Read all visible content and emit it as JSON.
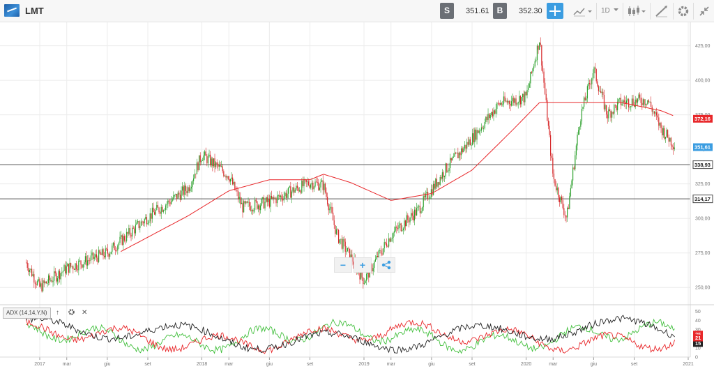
{
  "header": {
    "symbol": "LMT",
    "sell_label": "S",
    "sell_price": "351.61",
    "buy_label": "B",
    "buy_price": "352.30",
    "timeframe": "1D",
    "icons": [
      "crosshair-icon",
      "chart-type-icon",
      "candlestick-icon",
      "draw-tool-icon",
      "gear-icon",
      "collapse-icon"
    ]
  },
  "chart_data": {
    "type": "line",
    "title": "",
    "yticks": [
      "250,00",
      "275,00",
      "300,00",
      "325,00",
      "350,00",
      "375,00",
      "400,00",
      "425,00"
    ],
    "xticks": [
      "2017",
      "mar",
      "giu",
      "set",
      "2018",
      "mar",
      "giu",
      "set",
      "2019",
      "mar",
      "giu",
      "set",
      "2020",
      "mar",
      "giu",
      "set",
      "2021"
    ],
    "ylim": [
      240,
      442
    ],
    "grid": true,
    "price_series": {
      "name": "LMT",
      "x": [
        "2016-12",
        "2017-01",
        "2017-03",
        "2017-06",
        "2017-09",
        "2017-12",
        "2018-01",
        "2018-03",
        "2018-04",
        "2018-06",
        "2018-09",
        "2018-10",
        "2018-11",
        "2018-12",
        "2019-01",
        "2019-03",
        "2019-05",
        "2019-07",
        "2019-09",
        "2019-11",
        "2020-01",
        "2020-02",
        "2020-03",
        "2020-04",
        "2020-05",
        "2020-06",
        "2020-07",
        "2020-08",
        "2020-09",
        "2020-10",
        "2020-11",
        "2020-12"
      ],
      "values": [
        268,
        250,
        264,
        275,
        301,
        322,
        346,
        331,
        308,
        312,
        326,
        324,
        288,
        272,
        255,
        288,
        306,
        335,
        358,
        383,
        388,
        430,
        330,
        300,
        373,
        408,
        375,
        384,
        385,
        386,
        365,
        353
      ]
    },
    "moving_average": {
      "x": [
        "2017-07",
        "2017-12",
        "2018-03",
        "2018-06",
        "2018-09",
        "2018-10",
        "2018-12",
        "2019-03",
        "2019-06",
        "2019-09",
        "2019-12",
        "2020-02",
        "2020-05",
        "2020-08",
        "2020-11",
        "2020-12"
      ],
      "values": [
        276,
        302,
        320,
        328,
        328,
        332,
        326,
        313,
        318,
        335,
        364,
        384,
        384,
        384,
        378,
        374
      ]
    },
    "horizontal_levels": [
      {
        "value": 338.93,
        "label": "338,93"
      },
      {
        "value": 314.17,
        "label": "314,17"
      }
    ],
    "price_tags": [
      {
        "value": 372.16,
        "label": "372,16",
        "color": "#e8272a"
      },
      {
        "value": 351.61,
        "label": "351,61",
        "color": "#3b9de1"
      }
    ],
    "adx": {
      "label": "ADX (14,14,Y,N)",
      "yticks": [
        "0",
        "10",
        "20",
        "30",
        "40",
        "50"
      ],
      "ylim": [
        0,
        55
      ],
      "current_tags": [
        {
          "label": "15",
          "color": "#222222"
        },
        {
          "label": "25",
          "color": "#e8272a"
        },
        {
          "label": "21",
          "color": "#e8272a"
        }
      ],
      "series_colors": {
        "adx": "#222222",
        "plus_di": "#44c03f",
        "minus_di": "#e8272a"
      }
    },
    "colors": {
      "up": "#2ca02c",
      "down": "#d62728",
      "ma": "#e8272a",
      "grid": "#ececec"
    }
  },
  "zoom": {
    "minus": "−",
    "plus": "+"
  },
  "adx_controls": {
    "up": "↑",
    "close": "✕"
  }
}
